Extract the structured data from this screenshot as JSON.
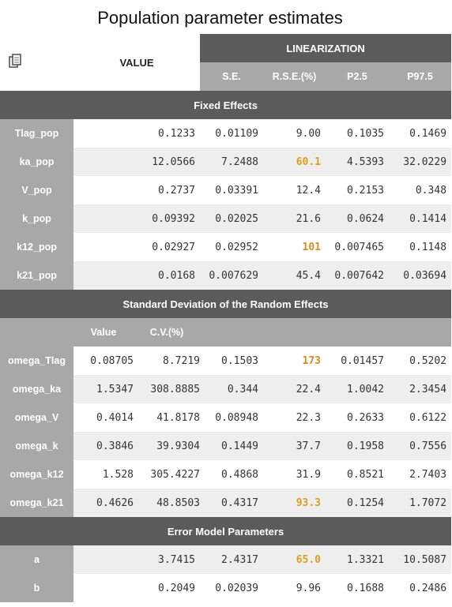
{
  "title": "Population parameter estimates",
  "header": {
    "value": "VALUE",
    "linearization": "LINEARIZATION",
    "se": "S.E.",
    "rse": "R.S.E.(%)",
    "p25": "P2.5",
    "p975": "P97.5"
  },
  "fixed_effects": {
    "title": "Fixed Effects",
    "rows": [
      {
        "name": "Tlag_pop",
        "value": "0.1233",
        "se": "0.01109",
        "rse": "9.00",
        "p25": "0.1035",
        "p975": "0.1469"
      },
      {
        "name": "ka_pop",
        "value": "12.0566",
        "se": "7.2488",
        "rse": "60.1",
        "p25": "4.5393",
        "p975": "32.0229"
      },
      {
        "name": "V_pop",
        "value": "0.2737",
        "se": "0.03391",
        "rse": "12.4",
        "p25": "0.2153",
        "p975": "0.348"
      },
      {
        "name": "k_pop",
        "value": "0.09392",
        "se": "0.02025",
        "rse": "21.6",
        "p25": "0.0624",
        "p975": "0.1414"
      },
      {
        "name": "k12_pop",
        "value": "0.02927",
        "se": "0.02952",
        "rse": "101",
        "p25": "0.007465",
        "p975": "0.1148"
      },
      {
        "name": "k21_pop",
        "value": "0.0168",
        "se": "0.007629",
        "rse": "45.4",
        "p25": "0.007642",
        "p975": "0.03694"
      }
    ]
  },
  "random_effects": {
    "title": "Standard Deviation of the Random Effects",
    "col_value": "Value",
    "col_cv": "C.V.(%)",
    "rows": [
      {
        "name": "omega_Tlag",
        "value": "0.08705",
        "cv": "8.7219",
        "se": "0.1503",
        "rse": "173",
        "p25": "0.01457",
        "p975": "0.5202"
      },
      {
        "name": "omega_ka",
        "value": "1.5347",
        "cv": "308.8885",
        "se": "0.344",
        "rse": "22.4",
        "p25": "1.0042",
        "p975": "2.3454"
      },
      {
        "name": "omega_V",
        "value": "0.4014",
        "cv": "41.8178",
        "se": "0.08948",
        "rse": "22.3",
        "p25": "0.2633",
        "p975": "0.6122"
      },
      {
        "name": "omega_k",
        "value": "0.3846",
        "cv": "39.9304",
        "se": "0.1449",
        "rse": "37.7",
        "p25": "0.1958",
        "p975": "0.7556"
      },
      {
        "name": "omega_k12",
        "value": "1.528",
        "cv": "305.4227",
        "se": "0.4868",
        "rse": "31.9",
        "p25": "0.8521",
        "p975": "2.7403"
      },
      {
        "name": "omega_k21",
        "value": "0.4626",
        "cv": "48.8503",
        "se": "0.4317",
        "rse": "93.3",
        "p25": "0.1254",
        "p975": "1.7072"
      }
    ]
  },
  "error_model": {
    "title": "Error Model Parameters",
    "rows": [
      {
        "name": "a",
        "value": "3.7415",
        "se": "2.4317",
        "rse": "65.0",
        "p25": "1.3321",
        "p975": "10.5087"
      },
      {
        "name": "b",
        "value": "0.2049",
        "se": "0.02039",
        "rse": "9.96",
        "p25": "0.1688",
        "p975": "0.2486"
      }
    ]
  },
  "colors": {
    "header_dark": "#5b5b5b",
    "header_light": "#a8a8a8",
    "highlight_rse": "#d9a020"
  },
  "icons": {
    "copy": "copy-icon"
  }
}
